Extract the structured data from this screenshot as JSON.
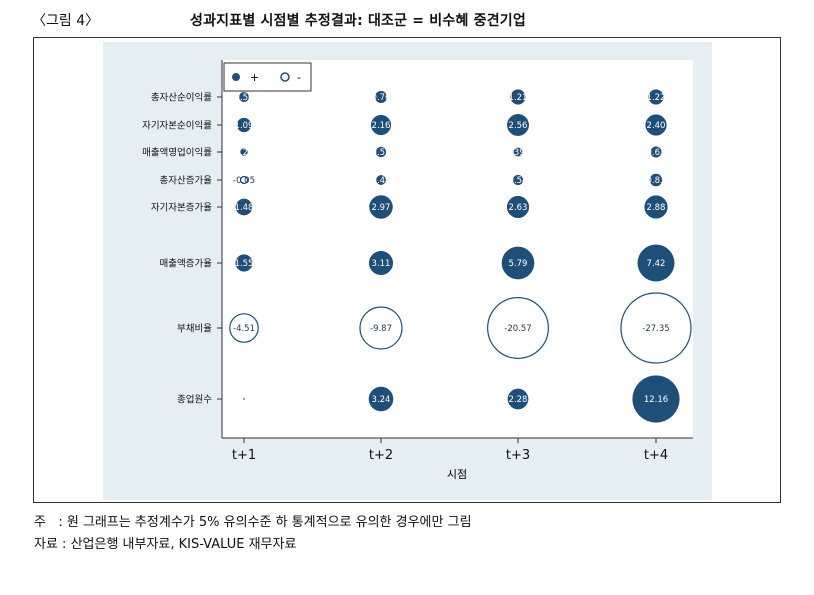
{
  "figure": {
    "label": "〈그림 4〉",
    "title": "성과지표별 시점별 추정결과: 대조군 = 비수혜 중견기업"
  },
  "notes": {
    "note": "주   : 원 그래프는 추정계수가 5% 유의수준 하 통계적으로 유의한 경우에만 그림",
    "source": "자료 : 산업은행 내부자료, KIS-VALUE 재무자료"
  },
  "colors": {
    "positive_fill": "#1f4e79",
    "negative_fill": "#ffffff",
    "panel_bg": "#e4eef3",
    "axis": "#333333"
  },
  "chart_data": {
    "type": "scatter",
    "subtype": "bubble",
    "xlabel": "시점",
    "ylabel": "",
    "x_categories": [
      "t+1",
      "t+2",
      "t+3",
      "t+4"
    ],
    "y_categories": [
      "총자산순이익률",
      "자기자본순이익률",
      "매출액영업이익률",
      "총자산증가율",
      "자기자본증가율",
      "매출액증가율",
      "부채비율",
      "종업원수"
    ],
    "legend": [
      {
        "marker": "filled",
        "label": "+"
      },
      {
        "marker": "hollow",
        "label": "-"
      }
    ],
    "legend_position": "top-left",
    "grid": false,
    "cells": [
      {
        "row": "총자산순이익률",
        "col": "t+1",
        "label": "0.50",
        "value": 0.5
      },
      {
        "row": "총자산순이익률",
        "col": "t+2",
        "label": "0.76",
        "value": 0.76
      },
      {
        "row": "총자산순이익률",
        "col": "t+3",
        "label": "1.21",
        "value": 1.21
      },
      {
        "row": "총자산순이익률",
        "col": "t+4",
        "label": "1.22",
        "value": 1.22
      },
      {
        "row": "자기자본순이익률",
        "col": "t+1",
        "label": "1.09",
        "value": 1.09
      },
      {
        "row": "자기자본순이익률",
        "col": "t+2",
        "label": "2.16",
        "value": 2.16
      },
      {
        "row": "자기자본순이익률",
        "col": "t+3",
        "label": "2.56",
        "value": 2.56
      },
      {
        "row": "자기자본순이익률",
        "col": "t+4",
        "label": "2.40",
        "value": 2.4
      },
      {
        "row": "매출액영업이익률",
        "col": "t+1",
        "label": ".2",
        "value": 0.2
      },
      {
        "row": "매출액영업이익률",
        "col": "t+2",
        "label": "0.55",
        "value": 0.55
      },
      {
        "row": "매출액영업이익률",
        "col": "t+3",
        "label": ".39",
        "value": 0.39
      },
      {
        "row": "매출액영업이익률",
        "col": "t+4",
        "label": "0.63",
        "value": 0.63
      },
      {
        "row": "총자산증가율",
        "col": "t+1",
        "label": "-0.05",
        "value": -0.05
      },
      {
        "row": "총자산증가율",
        "col": "t+2",
        "label": "0.49",
        "value": 0.49
      },
      {
        "row": "총자산증가율",
        "col": "t+3",
        "label": "0.54",
        "value": 0.54
      },
      {
        "row": "총자산증가율",
        "col": "t+4",
        "label": "0.83",
        "value": 0.83
      },
      {
        "row": "자기자본증가율",
        "col": "t+1",
        "label": "1.48",
        "value": 1.48
      },
      {
        "row": "자기자본증가율",
        "col": "t+2",
        "label": "2.97",
        "value": 2.97
      },
      {
        "row": "자기자본증가율",
        "col": "t+3",
        "label": "2.63",
        "value": 2.63
      },
      {
        "row": "자기자본증가율",
        "col": "t+4",
        "label": "2.88",
        "value": 2.88
      },
      {
        "row": "매출액증가율",
        "col": "t+1",
        "label": "1.55",
        "value": 1.55
      },
      {
        "row": "매출액증가율",
        "col": "t+2",
        "label": "3.11",
        "value": 3.11
      },
      {
        "row": "매출액증가율",
        "col": "t+3",
        "label": "5.79",
        "value": 5.79
      },
      {
        "row": "매출액증가율",
        "col": "t+4",
        "label": "7.42",
        "value": 7.42
      },
      {
        "row": "부채비율",
        "col": "t+1",
        "label": "-4.51",
        "value": -4.51
      },
      {
        "row": "부채비율",
        "col": "t+2",
        "label": "-9.87",
        "value": -9.87
      },
      {
        "row": "부채비율",
        "col": "t+3",
        "label": "-20.57",
        "value": -20.57
      },
      {
        "row": "부채비율",
        "col": "t+4",
        "label": "-27.35",
        "value": -27.35
      },
      {
        "row": "종업원수",
        "col": "t+1",
        "label": "",
        "value": 0
      },
      {
        "row": "종업원수",
        "col": "t+2",
        "label": "3.24",
        "value": 3.24
      },
      {
        "row": "종업원수",
        "col": "t+3",
        "label": "2.28",
        "value": 2.28
      },
      {
        "row": "종업원수",
        "col": "t+4",
        "label": "12.16",
        "value": 12.16
      }
    ]
  }
}
